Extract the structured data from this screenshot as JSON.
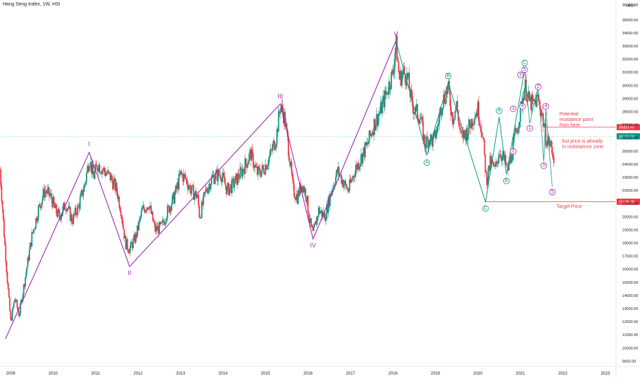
{
  "header": {
    "symbol": "Hang Seng Index, 1W, HSI"
  },
  "axis": {
    "currency": "HKD",
    "top_partial": "36000.00"
  },
  "chart_data": {
    "type": "candlestick",
    "title": "Hang Seng Index, 1W, HSI",
    "ylim": [
      8600,
      36300
    ],
    "xlim": [
      2008.75,
      2023.25
    ],
    "y_ticks": [
      9000,
      10000,
      11000,
      12000,
      13000,
      14000,
      15000,
      16000,
      17000,
      18000,
      19000,
      20000,
      21000,
      22000,
      23000,
      24000,
      25000,
      26000,
      27000,
      28000,
      29000,
      30000,
      31000,
      32000,
      33000,
      34000,
      35000
    ],
    "x_ticks": [
      "2009",
      "2010",
      "2011",
      "2012",
      "2013",
      "2014",
      "2015",
      "2016",
      "2017",
      "2018",
      "2019",
      "2020",
      "2021",
      "2022",
      "2023"
    ],
    "price_path": [
      [
        2008.75,
        23600
      ],
      [
        2008.85,
        18500
      ],
      [
        2008.95,
        14000
      ],
      [
        2009.0,
        12000
      ],
      [
        2009.1,
        13800
      ],
      [
        2009.2,
        12500
      ],
      [
        2009.35,
        15500
      ],
      [
        2009.5,
        18500
      ],
      [
        2009.65,
        20500
      ],
      [
        2009.8,
        22000
      ],
      [
        2009.95,
        21500
      ],
      [
        2010.05,
        20500
      ],
      [
        2010.15,
        20000
      ],
      [
        2010.3,
        21000
      ],
      [
        2010.45,
        19700
      ],
      [
        2010.6,
        20800
      ],
      [
        2010.75,
        22500
      ],
      [
        2010.85,
        24500
      ],
      [
        2010.95,
        23000
      ],
      [
        2011.05,
        24000
      ],
      [
        2011.2,
        23500
      ],
      [
        2011.35,
        23000
      ],
      [
        2011.5,
        22000
      ],
      [
        2011.6,
        20500
      ],
      [
        2011.7,
        18000
      ],
      [
        2011.8,
        17500
      ],
      [
        2011.95,
        18500
      ],
      [
        2012.1,
        20500
      ],
      [
        2012.25,
        21000
      ],
      [
        2012.4,
        19000
      ],
      [
        2012.55,
        19200
      ],
      [
        2012.7,
        20500
      ],
      [
        2012.85,
        21500
      ],
      [
        2013.0,
        23200
      ],
      [
        2013.1,
        23000
      ],
      [
        2013.25,
        22000
      ],
      [
        2013.4,
        21500
      ],
      [
        2013.45,
        20000
      ],
      [
        2013.6,
        22000
      ],
      [
        2013.75,
        23000
      ],
      [
        2013.95,
        23300
      ],
      [
        2014.1,
        22000
      ],
      [
        2014.25,
        22500
      ],
      [
        2014.45,
        23500
      ],
      [
        2014.65,
        24800
      ],
      [
        2014.8,
        23300
      ],
      [
        2014.95,
        23600
      ],
      [
        2015.1,
        24600
      ],
      [
        2015.25,
        26000
      ],
      [
        2015.35,
        28500
      ],
      [
        2015.45,
        27500
      ],
      [
        2015.55,
        25000
      ],
      [
        2015.65,
        22000
      ],
      [
        2015.75,
        21500
      ],
      [
        2015.85,
        22500
      ],
      [
        2015.95,
        21800
      ],
      [
        2016.05,
        19500
      ],
      [
        2016.12,
        18600
      ],
      [
        2016.25,
        20500
      ],
      [
        2016.4,
        20000
      ],
      [
        2016.55,
        22000
      ],
      [
        2016.7,
        23500
      ],
      [
        2016.85,
        22500
      ],
      [
        2016.95,
        22000
      ],
      [
        2017.1,
        23500
      ],
      [
        2017.25,
        24500
      ],
      [
        2017.4,
        25500
      ],
      [
        2017.55,
        27000
      ],
      [
        2017.7,
        28000
      ],
      [
        2017.85,
        29500
      ],
      [
        2018.0,
        31000
      ],
      [
        2018.07,
        33300
      ],
      [
        2018.15,
        30500
      ],
      [
        2018.25,
        31000
      ],
      [
        2018.35,
        30500
      ],
      [
        2018.45,
        28500
      ],
      [
        2018.55,
        28000
      ],
      [
        2018.65,
        27500
      ],
      [
        2018.75,
        25500
      ],
      [
        2018.85,
        26000
      ],
      [
        2018.95,
        25700
      ],
      [
        2019.05,
        26800
      ],
      [
        2019.15,
        28700
      ],
      [
        2019.3,
        29800
      ],
      [
        2019.4,
        27500
      ],
      [
        2019.5,
        28500
      ],
      [
        2019.6,
        26000
      ],
      [
        2019.75,
        26500
      ],
      [
        2019.9,
        27700
      ],
      [
        2020.0,
        28200
      ],
      [
        2020.1,
        26500
      ],
      [
        2020.2,
        22800
      ],
      [
        2020.3,
        24200
      ],
      [
        2020.4,
        23500
      ],
      [
        2020.5,
        25000
      ],
      [
        2020.6,
        24500
      ],
      [
        2020.7,
        23500
      ],
      [
        2020.8,
        24800
      ],
      [
        2020.9,
        26500
      ],
      [
        2021.0,
        28000
      ],
      [
        2021.1,
        30000
      ],
      [
        2021.2,
        28800
      ],
      [
        2021.3,
        28500
      ],
      [
        2021.4,
        29000
      ],
      [
        2021.5,
        28000
      ],
      [
        2021.6,
        26000
      ],
      [
        2021.7,
        25500
      ],
      [
        2021.8,
        24500
      ]
    ],
    "waves": {
      "primary": [
        {
          "label": "I",
          "x": 2010.85,
          "y": 24900
        },
        {
          "label": "II",
          "x": 2011.8,
          "y": 16200
        },
        {
          "label": "III",
          "x": 2015.35,
          "y": 28600
        },
        {
          "label": "IV",
          "x": 2016.12,
          "y": 18300
        },
        {
          "label": "V",
          "x": 2018.07,
          "y": 33400
        }
      ],
      "start": {
        "x": 2008.88,
        "y": 10700
      },
      "abc": [
        {
          "label": "A",
          "x": 2018.8,
          "y": 24700
        },
        {
          "label": "B",
          "x": 2019.3,
          "y": 30200
        },
        {
          "label": "C",
          "x": 2020.18,
          "y": 21100
        }
      ],
      "secondary": [
        {
          "label": "A",
          "x": 2020.5,
          "y": 27600
        },
        {
          "label": "B",
          "x": 2020.67,
          "y": 23200
        },
        {
          "label": "C",
          "x": 2021.1,
          "y": 31200
        }
      ],
      "sub_up": [
        {
          "label": "1",
          "x": 2020.83,
          "y": 27800
        },
        {
          "label": "2",
          "x": 2020.83,
          "y": 25400
        },
        {
          "label": "3",
          "x": 2021.0,
          "y": 30700
        },
        {
          "label": "4",
          "x": 2021.05,
          "y": 28200
        },
        {
          "label": "5",
          "x": 2021.1,
          "y": 31200
        }
      ],
      "sub_down": [
        {
          "label": "1",
          "x": 2021.22,
          "y": 27100
        },
        {
          "label": "2",
          "x": 2021.42,
          "y": 29900
        },
        {
          "label": "3",
          "x": 2021.55,
          "y": 24200
        },
        {
          "label": "4",
          "x": 2021.6,
          "y": 28200
        },
        {
          "label": "5",
          "x": 2021.75,
          "y": 22300
        }
      ]
    },
    "levels": [
      {
        "name": "resistance",
        "value": 26822.47,
        "label": "26822.47",
        "color": "#f23645"
      },
      {
        "name": "current",
        "value": 26126.93,
        "label": "26126.93",
        "color": "#089981"
      },
      {
        "name": "target",
        "value": 21139.26,
        "label": "21139.26",
        "color": "#f23645"
      }
    ],
    "annotations": [
      {
        "text": [
          "Potential",
          "resistance point",
          "from here"
        ],
        "color": "#f23645"
      },
      {
        "text": [
          "but price is already",
          "in resistaence zone"
        ],
        "color": "#f23645"
      },
      {
        "text": [
          "Target Price"
        ],
        "color": "#f23645"
      }
    ],
    "colors": {
      "up": "#089981",
      "down": "#f23645",
      "wave_line": "#9c27b0",
      "abc_line": "#089981",
      "sub_wave": "#9c27b0"
    }
  }
}
